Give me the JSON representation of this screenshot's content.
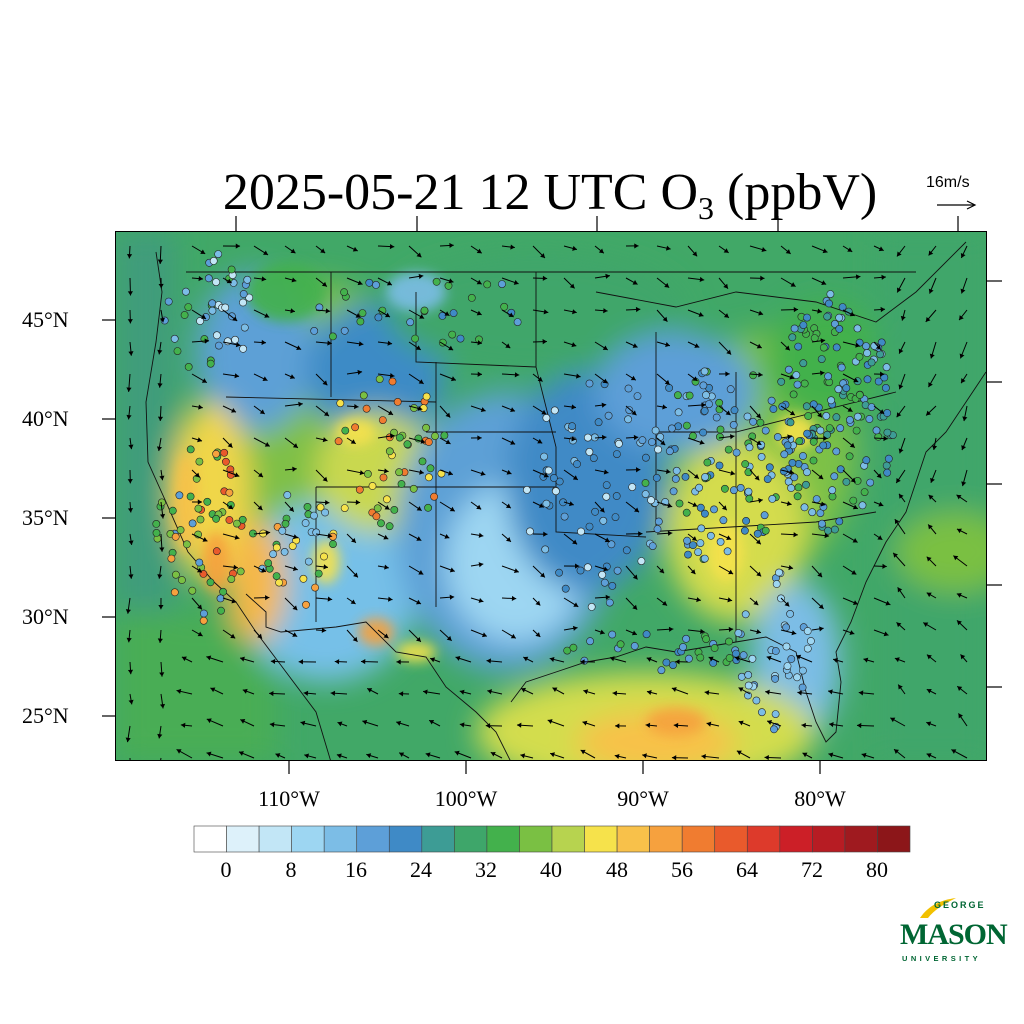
{
  "title": {
    "main": "2025-05-21 12 UTC O",
    "subscript": "3",
    "unit": " (ppbV)"
  },
  "wind_reference": {
    "label": "16m/s"
  },
  "axes": {
    "latitude_labels": [
      "45°N",
      "40°N",
      "35°N",
      "30°N",
      "25°N"
    ],
    "longitude_labels": [
      "110°W",
      "100°W",
      "90°W",
      "80°W"
    ]
  },
  "colorbar": {
    "tick_labels": [
      "0",
      "8",
      "16",
      "24",
      "32",
      "40",
      "48",
      "56",
      "64",
      "72",
      "80"
    ],
    "colors": [
      "#ffffff",
      "#ddf1fa",
      "#c2e6f6",
      "#9dd6f2",
      "#7cbde6",
      "#5d9fd8",
      "#3f8ac6",
      "#3d9c95",
      "#3ea66a",
      "#43b14c",
      "#7ac043",
      "#b7d34f",
      "#f6e24b",
      "#f8c14a",
      "#f6a13e",
      "#f07c30",
      "#e95a2c",
      "#dd3a2b",
      "#cc1f27",
      "#b71c23",
      "#9f1a1f",
      "#8c1619"
    ]
  },
  "chart_data": {
    "type": "heatmap",
    "title": "2025-05-21 12 UTC O3 (ppbV)",
    "variable": "O3",
    "unit": "ppbV",
    "valid_time": "2025-05-21 12 UTC",
    "region": "Contiguous United States",
    "lon_range": [
      -125,
      -65
    ],
    "lat_range": [
      22.5,
      49.5
    ],
    "colorbar_range": [
      0,
      84
    ],
    "colorbar_interval": 4,
    "wind_vector_reference_ms": 16,
    "notable_values": {
      "southwest_highs_ppbV": [
        56,
        68
      ],
      "central_plains_lows_ppbV": [
        12,
        24
      ],
      "gulf_offshore_ppbV": [
        44,
        56
      ],
      "atlantic_offshore_ppbV": [
        32,
        40
      ]
    }
  },
  "logo": {
    "line1": "GEORGE",
    "line2": "MASON",
    "line3": "UNIVERSITY"
  }
}
